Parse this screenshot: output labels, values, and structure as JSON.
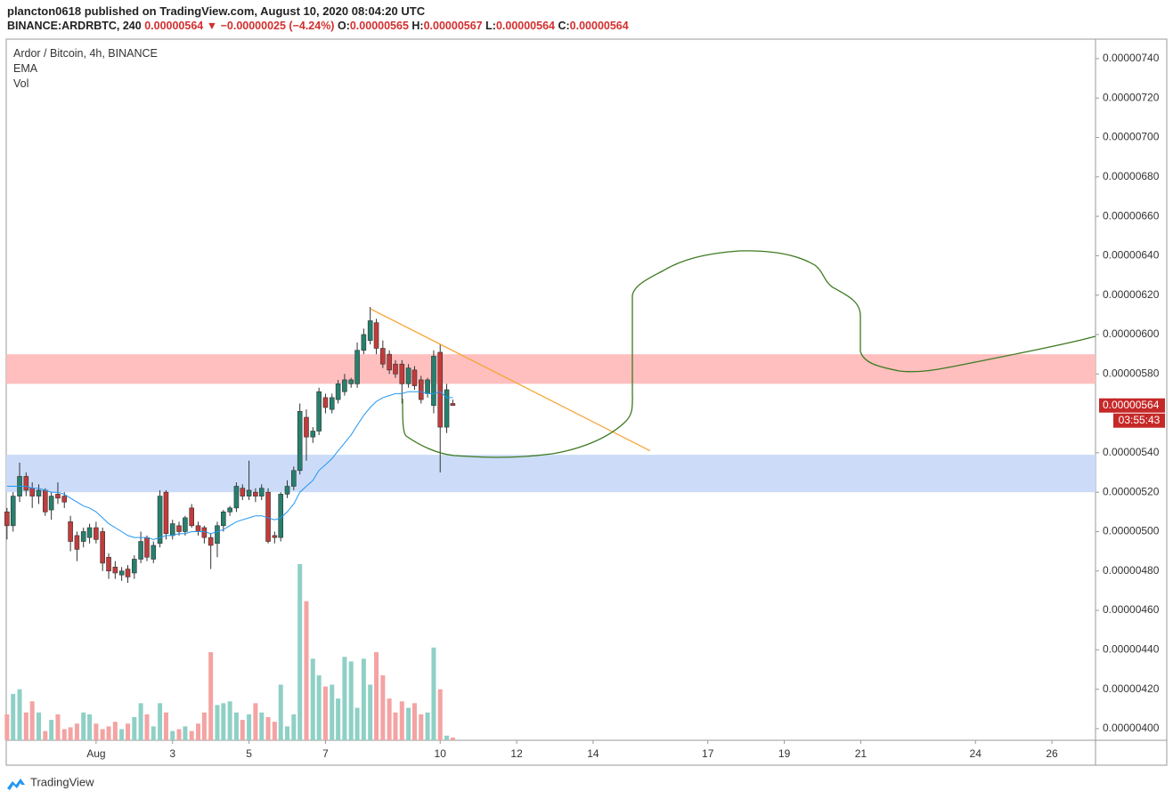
{
  "header": {
    "byline": "plancton0618 published on TradingView.com, August 10, 2020 08:04:20 UTC",
    "symbol": "BINANCE:ARDRBTC, 240",
    "price": "0.00000564",
    "arrow": "▼",
    "change": "−0.00000025 (−4.24%)",
    "ohlc": [
      {
        "key": "O:",
        "value": "0.00000565"
      },
      {
        "key": "H:",
        "value": "0.00000567"
      },
      {
        "key": "L:",
        "value": "0.00000564"
      },
      {
        "key": "C:",
        "value": "0.00000564"
      }
    ]
  },
  "footer": {
    "brand": "TradingView"
  },
  "chart_data": {
    "type": "candlestick",
    "title": "Ardor / Bitcoin, 4h, BINANCE",
    "indicators": [
      "EMA",
      "Vol"
    ],
    "x": [
      -1.33,
      -1.17,
      -1,
      -0.83,
      -0.67,
      -0.5,
      -0.33,
      -0.17,
      0,
      0.17,
      0.33,
      0.5,
      0.67,
      0.83,
      1,
      1.17,
      1.33,
      1.5,
      1.67,
      1.83,
      2,
      2.17,
      2.33,
      2.5,
      2.67,
      2.83,
      3,
      3.17,
      3.33,
      3.5,
      3.67,
      3.83,
      4,
      4.17,
      4.33,
      4.5,
      4.67,
      4.83,
      5,
      5.17,
      5.33,
      5.5,
      5.67,
      5.83,
      6,
      6.17,
      6.33,
      6.5,
      6.67,
      6.83,
      7,
      7.17,
      7.33,
      7.5,
      7.67,
      7.83,
      8,
      8.17,
      8.33,
      8.5,
      8.67,
      8.83,
      9,
      9.17,
      9.33,
      9.5,
      9.67,
      9.83,
      10,
      10.17,
      10.33
    ],
    "open": [
      5.1e-06,
      5.03e-06,
      5.18e-06,
      5.28e-06,
      5.22e-06,
      5.18e-06,
      5.21e-06,
      5.11e-06,
      5.19e-06,
      5.18e-06,
      5.05e-06,
      4.98e-06,
      4.95e-06,
      4.97e-06,
      5.02e-06,
      5e-06,
      4.87e-06,
      4.82e-06,
      4.78e-06,
      4.81e-06,
      4.79e-06,
      4.86e-06,
      4.97e-06,
      4.86e-06,
      4.94e-06,
      5.2e-06,
      4.98e-06,
      5.03e-06,
      5e-06,
      5.12e-06,
      5.03e-06,
      5.02e-06,
      4.97e-06,
      4.94e-06,
      5.03e-06,
      5.1e-06,
      5.12e-06,
      5.22e-06,
      5.18e-06,
      5.2e-06,
      5.18e-06,
      5.2e-06,
      4.98e-06,
      4.97e-06,
      5.19e-06,
      5.23e-06,
      5.31e-06,
      5.58e-06,
      5.48e-06,
      5.51e-06,
      5.68e-06,
      5.62e-06,
      5.67e-06,
      5.71e-06,
      5.75e-06,
      5.75e-06,
      5.92e-06,
      5.97e-06,
      6.06e-06,
      5.93e-06,
      5.9e-06,
      5.85e-06,
      5.85e-06,
      5.75e-06,
      5.82e-06,
      5.77e-06,
      5.7e-06,
      5.64e-06,
      5.91e-06,
      5.53e-06,
      5.65e-06
    ],
    "high": [
      5.12e-06,
      5.2e-06,
      5.35e-06,
      5.3e-06,
      5.25e-06,
      5.24e-06,
      5.22e-06,
      5.2e-06,
      5.25e-06,
      5.2e-06,
      5.08e-06,
      5e-06,
      5.02e-06,
      5.04e-06,
      5.05e-06,
      5.02e-06,
      4.89e-06,
      4.85e-06,
      4.82e-06,
      4.83e-06,
      4.88e-06,
      5e-06,
      4.98e-06,
      4.95e-06,
      5.21e-06,
      5.21e-06,
      5.06e-06,
      5.05e-06,
      5.08e-06,
      5.14e-06,
      5.05e-06,
      5.03e-06,
      4.99e-06,
      5.05e-06,
      5.11e-06,
      5.13e-06,
      5.25e-06,
      5.24e-06,
      5.36e-06,
      5.22e-06,
      5.24e-06,
      5.22e-06,
      5e-06,
      5.2e-06,
      5.26e-06,
      5.33e-06,
      5.65e-06,
      5.62e-06,
      5.53e-06,
      5.73e-06,
      5.7e-06,
      5.7e-06,
      5.77e-06,
      5.8e-06,
      5.78e-06,
      5.96e-06,
      6.03e-06,
      6.14e-06,
      6.08e-06,
      5.97e-06,
      5.92e-06,
      5.87e-06,
      5.87e-06,
      5.85e-06,
      5.84e-06,
      5.79e-06,
      5.78e-06,
      5.92e-06,
      5.95e-06,
      5.75e-06,
      5.67e-06
    ],
    "low": [
      4.96e-06,
      5e-06,
      5.15e-06,
      5.18e-06,
      5.12e-06,
      5.14e-06,
      5.08e-06,
      5.06e-06,
      5.14e-06,
      5.12e-06,
      4.9e-06,
      4.85e-06,
      4.92e-06,
      4.94e-06,
      4.94e-06,
      4.8e-06,
      4.76e-06,
      4.76e-06,
      4.75e-06,
      4.74e-06,
      4.76e-06,
      4.84e-06,
      4.85e-06,
      4.84e-06,
      4.92e-06,
      4.96e-06,
      4.96e-06,
      4.98e-06,
      4.98e-06,
      5.02e-06,
      4.98e-06,
      4.94e-06,
      4.81e-06,
      4.87e-06,
      5e-06,
      5.08e-06,
      5.1e-06,
      5.16e-06,
      5.16e-06,
      5.15e-06,
      5.16e-06,
      4.94e-06,
      4.94e-06,
      4.95e-06,
      5.17e-06,
      5.21e-06,
      5.29e-06,
      5.36e-06,
      5.45e-06,
      5.49e-06,
      5.6e-06,
      5.6e-06,
      5.65e-06,
      5.69e-06,
      5.73e-06,
      5.73e-06,
      5.9e-06,
      5.95e-06,
      5.9e-06,
      5.83e-06,
      5.8e-06,
      5.78e-06,
      5.65e-06,
      5.73e-06,
      5.72e-06,
      5.65e-06,
      5.68e-06,
      5.6e-06,
      5.3e-06,
      5.5e-06,
      5.64e-06
    ],
    "close": [
      5.03e-06,
      5.18e-06,
      5.28e-06,
      5.21e-06,
      5.18e-06,
      5.21e-06,
      5.1e-06,
      5.18e-06,
      5.17e-06,
      5.15e-06,
      4.95e-06,
      4.91e-06,
      5e-06,
      5.02e-06,
      4.96e-06,
      4.84e-06,
      4.8e-06,
      4.79e-06,
      4.8e-06,
      4.77e-06,
      4.86e-06,
      4.95e-06,
      4.87e-06,
      4.93e-06,
      5.18e-06,
      4.99e-06,
      5.04e-06,
      5e-06,
      5.07e-06,
      5.03e-06,
      5e-06,
      4.97e-06,
      4.93e-06,
      5.03e-06,
      5.1e-06,
      5.12e-06,
      5.23e-06,
      5.18e-06,
      5.21e-06,
      5.18e-06,
      5.22e-06,
      4.95e-06,
      4.97e-06,
      5.19e-06,
      5.23e-06,
      5.31e-06,
      5.61e-06,
      5.48e-06,
      5.51e-06,
      5.71e-06,
      5.63e-06,
      5.68e-06,
      5.75e-06,
      5.77e-06,
      5.77e-06,
      5.92e-06,
      6e-06,
      6.07e-06,
      5.93e-06,
      5.85e-06,
      5.82e-06,
      5.8e-06,
      5.75e-06,
      5.83e-06,
      5.74e-06,
      5.67e-06,
      5.77e-06,
      5.89e-06,
      5.53e-06,
      5.72e-06,
      5.64e-06
    ],
    "ema": [
      5.23e-06,
      5.23e-06,
      5.23e-06,
      5.23e-06,
      5.22e-06,
      5.22e-06,
      5.21e-06,
      5.2e-06,
      5.2e-06,
      5.19e-06,
      5.17e-06,
      5.15e-06,
      5.13e-06,
      5.12e-06,
      5.1e-06,
      5.07e-06,
      5.04e-06,
      5.02e-06,
      5e-06,
      4.98e-06,
      4.97e-06,
      4.97e-06,
      4.97e-06,
      4.96e-06,
      4.97e-06,
      4.98e-06,
      4.98e-06,
      4.99e-06,
      4.99e-06,
      5e-06,
      5e-06,
      5e-06,
      4.99e-06,
      5e-06,
      5.01e-06,
      5.03e-06,
      5.05e-06,
      5.06e-06,
      5.07e-06,
      5.08e-06,
      5.08e-06,
      5.07e-06,
      5.06e-06,
      5.07e-06,
      5.1e-06,
      5.14e-06,
      5.2e-06,
      5.23e-06,
      5.26e-06,
      5.31e-06,
      5.34e-06,
      5.37e-06,
      5.41e-06,
      5.45e-06,
      5.49e-06,
      5.54e-06,
      5.59e-06,
      5.63e-06,
      5.66e-06,
      5.68e-06,
      5.69e-06,
      5.7e-06,
      5.7e-06,
      5.71e-06,
      5.71e-06,
      5.71e-06,
      5.7e-06,
      5.7e-06,
      5.71e-06,
      5.68e-06,
      5.68e-06
    ],
    "volume": [
      28,
      50,
      55,
      30,
      42,
      30,
      10,
      22,
      28,
      12,
      14,
      18,
      30,
      28,
      18,
      12,
      15,
      20,
      12,
      18,
      25,
      40,
      28,
      15,
      40,
      30,
      10,
      12,
      15,
      10,
      18,
      30,
      95,
      38,
      40,
      42,
      30,
      22,
      28,
      40,
      30,
      25,
      20,
      60,
      15,
      28,
      190,
      150,
      88,
      70,
      58,
      60,
      45,
      90,
      85,
      35,
      88,
      60,
      95,
      70,
      45,
      30,
      42,
      35,
      40,
      28,
      30,
      100,
      55,
      5,
      3
    ],
    "xlim": [
      -1.35,
      27.14
    ],
    "xticks": [
      {
        "value": 1,
        "label": "Aug"
      },
      3,
      5,
      7,
      10,
      12,
      14,
      17,
      19,
      21,
      24,
      26
    ],
    "ylim": [
      3.941e-06,
      7.499e-06
    ],
    "yticks": [
      {
        "value": 4e-06,
        "label": "0.00000400"
      },
      {
        "value": 4.2e-06,
        "label": "0.00000420"
      },
      {
        "value": 4.4e-06,
        "label": "0.00000440"
      },
      {
        "value": 4.6e-06,
        "label": "0.00000460"
      },
      {
        "value": 4.8e-06,
        "label": "0.00000480"
      },
      {
        "value": 5e-06,
        "label": "0.00000500"
      },
      {
        "value": 5.2e-06,
        "label": "0.00000520"
      },
      {
        "value": 5.4e-06,
        "label": "0.00000540"
      },
      {
        "value": 5.8e-06,
        "label": "0.00000580"
      },
      {
        "value": 6e-06,
        "label": "0.00000600"
      },
      {
        "value": 6.2e-06,
        "label": "0.00000620"
      },
      {
        "value": 6.4e-06,
        "label": "0.00000640"
      },
      {
        "value": 6.6e-06,
        "label": "0.00000660"
      },
      {
        "value": 6.8e-06,
        "label": "0.00000680"
      },
      {
        "value": 7e-06,
        "label": "0.00000700"
      },
      {
        "value": 7.2e-06,
        "label": "0.00000720"
      },
      {
        "value": 7.4e-06,
        "label": "0.00000740"
      }
    ],
    "colors": {
      "up": "#26806e",
      "down": "#c23b3b",
      "up_volume": "#8fd0c6",
      "down_volume": "#f4a3a3",
      "ema": "#2196f3"
    },
    "zones": [
      {
        "range": [
          5.75e-06,
          5.9e-06
        ],
        "color": "#ffbcbc"
      },
      {
        "range": [
          5.2e-06,
          5.39e-06
        ],
        "color": "#c9daf8"
      }
    ],
    "trendline": {
      "x": [
        8.18,
        15.49
      ],
      "y": [
        6.13e-06,
        5.41e-06
      ],
      "color": "#f7a436"
    },
    "last_price": {
      "value": 5.64e-06,
      "label": "0.00000564"
    },
    "countdown": "03:55:43"
  }
}
